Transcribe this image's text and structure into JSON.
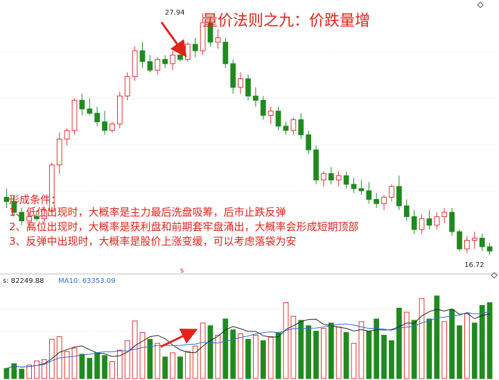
{
  "title": "量价法则之九：价跌量增",
  "conditions": {
    "heading": "形成条件：",
    "items": [
      "1、低位出现时，大概率是主力最后洗盘吸筹，后市止跌反弹",
      "2、高位出现时，大概率是获利盘和前期套牢盘涌出，大概率会形成短期顶部",
      "3、反弹中出现时，大概率是股价上涨变缓，可以考虑落袋为安"
    ]
  },
  "price_labels": {
    "high": "27.94",
    "low": "16.72"
  },
  "volume_header": {
    "vol_text": "s: 82249.88",
    "ma10_text": "MA10: 63353.09"
  },
  "marker_s": "s",
  "colors": {
    "up": "#e03030",
    "down": "#1f8a1f",
    "accent": "#e2231a",
    "ma_short": "#222222",
    "ma_long": "#2a6fd6"
  },
  "chart_data": {
    "type": "candlestick",
    "price_range": [
      16.0,
      28.3
    ],
    "price": [
      [
        19.4,
        19.8,
        18.9,
        19.2
      ],
      [
        19.2,
        19.5,
        18.5,
        18.7
      ],
      [
        18.7,
        18.9,
        18.1,
        18.3
      ],
      [
        18.3,
        18.7,
        17.9,
        18.5
      ],
      [
        18.5,
        18.8,
        18.3,
        18.4
      ],
      [
        18.4,
        19.0,
        18.2,
        18.8
      ],
      [
        18.8,
        21.0,
        18.7,
        20.9
      ],
      [
        20.9,
        22.4,
        20.5,
        22.1
      ],
      [
        22.1,
        22.6,
        21.8,
        22.5
      ],
      [
        22.5,
        24.0,
        22.3,
        23.9
      ],
      [
        23.9,
        24.2,
        23.2,
        23.5
      ],
      [
        23.5,
        24.0,
        23.2,
        23.3
      ],
      [
        23.3,
        23.6,
        22.7,
        22.9
      ],
      [
        22.9,
        23.4,
        22.3,
        22.5
      ],
      [
        22.5,
        22.9,
        22.4,
        22.8
      ],
      [
        22.8,
        24.3,
        22.6,
        24.1
      ],
      [
        24.1,
        25.2,
        23.9,
        25.0
      ],
      [
        25.0,
        26.4,
        24.8,
        26.2
      ],
      [
        26.2,
        26.6,
        25.4,
        25.7
      ],
      [
        25.7,
        26.0,
        25.2,
        25.3
      ],
      [
        25.3,
        25.9,
        25.1,
        25.8
      ],
      [
        25.8,
        26.0,
        25.4,
        25.6
      ],
      [
        25.6,
        26.2,
        25.3,
        26.0
      ],
      [
        26.0,
        26.3,
        25.7,
        25.8
      ],
      [
        25.8,
        26.6,
        25.7,
        26.5
      ],
      [
        26.5,
        26.8,
        25.9,
        26.2
      ],
      [
        26.2,
        27.94,
        26.0,
        27.5
      ],
      [
        27.5,
        27.8,
        26.4,
        26.6
      ],
      [
        26.6,
        27.2,
        26.3,
        26.8
      ],
      [
        26.6,
        26.8,
        25.4,
        25.6
      ],
      [
        25.6,
        25.8,
        24.2,
        24.5
      ],
      [
        24.5,
        25.2,
        24.2,
        24.9
      ],
      [
        24.9,
        25.1,
        23.9,
        24.1
      ],
      [
        24.1,
        24.5,
        23.6,
        23.9
      ],
      [
        23.9,
        24.1,
        23.0,
        23.2
      ],
      [
        23.2,
        23.6,
        22.8,
        23.4
      ],
      [
        23.4,
        23.6,
        22.5,
        22.7
      ],
      [
        22.7,
        22.9,
        22.3,
        22.5
      ],
      [
        22.5,
        23.1,
        22.3,
        23.0
      ],
      [
        23.0,
        23.3,
        22.1,
        22.3
      ],
      [
        22.3,
        22.5,
        21.4,
        21.6
      ],
      [
        21.6,
        21.8,
        20.0,
        20.2
      ],
      [
        20.2,
        20.6,
        19.9,
        20.5
      ],
      [
        20.5,
        20.8,
        20.0,
        20.2
      ],
      [
        20.2,
        20.6,
        19.9,
        20.4
      ],
      [
        20.4,
        20.6,
        19.8,
        20.0
      ],
      [
        20.0,
        20.3,
        19.6,
        19.8
      ],
      [
        19.8,
        20.2,
        19.5,
        19.7
      ],
      [
        19.7,
        20.1,
        19.1,
        19.3
      ],
      [
        19.3,
        19.6,
        18.9,
        19.1
      ],
      [
        19.1,
        19.5,
        18.8,
        19.4
      ],
      [
        19.4,
        20.0,
        19.2,
        19.9
      ],
      [
        19.9,
        20.4,
        18.8,
        19.0
      ],
      [
        19.0,
        19.3,
        18.3,
        18.5
      ],
      [
        18.5,
        18.8,
        17.7,
        17.9
      ],
      [
        17.9,
        18.6,
        17.7,
        18.4
      ],
      [
        18.4,
        18.8,
        17.9,
        18.1
      ],
      [
        18.1,
        18.7,
        17.9,
        18.5
      ],
      [
        18.5,
        18.9,
        18.2,
        18.7
      ],
      [
        18.7,
        18.9,
        17.6,
        17.8
      ],
      [
        17.8,
        17.9,
        16.9,
        17.0
      ],
      [
        17.0,
        17.6,
        16.8,
        17.4
      ],
      [
        17.4,
        17.8,
        17.0,
        17.5
      ],
      [
        17.5,
        17.7,
        16.9,
        17.1
      ],
      [
        17.1,
        17.3,
        16.72,
        16.9
      ]
    ],
    "volume_range": [
      0,
      135000
    ],
    "volume": [
      [
        15000,
        0
      ],
      [
        22000,
        0
      ],
      [
        14000,
        0
      ],
      [
        20000,
        1
      ],
      [
        26000,
        1
      ],
      [
        28000,
        1
      ],
      [
        58000,
        1
      ],
      [
        62000,
        1
      ],
      [
        40000,
        1
      ],
      [
        45000,
        1
      ],
      [
        36000,
        0
      ],
      [
        30000,
        0
      ],
      [
        38000,
        0
      ],
      [
        34000,
        0
      ],
      [
        25000,
        1
      ],
      [
        42000,
        1
      ],
      [
        56000,
        1
      ],
      [
        85000,
        1
      ],
      [
        68000,
        1
      ],
      [
        58000,
        0
      ],
      [
        52000,
        1
      ],
      [
        32000,
        0
      ],
      [
        38000,
        1
      ],
      [
        32000,
        0
      ],
      [
        40000,
        1
      ],
      [
        48000,
        1
      ],
      [
        82000,
        1
      ],
      [
        78000,
        0
      ],
      [
        64000,
        1
      ],
      [
        88000,
        0
      ],
      [
        72000,
        0
      ],
      [
        66000,
        1
      ],
      [
        58000,
        0
      ],
      [
        64000,
        1
      ],
      [
        56000,
        0
      ],
      [
        62000,
        1
      ],
      [
        68000,
        0
      ],
      [
        112000,
        1
      ],
      [
        92000,
        1
      ],
      [
        86000,
        0
      ],
      [
        78000,
        0
      ],
      [
        70000,
        0
      ],
      [
        74000,
        1
      ],
      [
        82000,
        0
      ],
      [
        76000,
        1
      ],
      [
        68000,
        0
      ],
      [
        52000,
        1
      ],
      [
        84000,
        1
      ],
      [
        70000,
        0
      ],
      [
        88000,
        0
      ],
      [
        64000,
        0
      ],
      [
        56000,
        0
      ],
      [
        104000,
        0
      ],
      [
        98000,
        1
      ],
      [
        86000,
        0
      ],
      [
        118000,
        1
      ],
      [
        88000,
        0
      ],
      [
        122000,
        0
      ],
      [
        84000,
        1
      ],
      [
        102000,
        0
      ],
      [
        78000,
        0
      ],
      [
        96000,
        1
      ],
      [
        82000,
        0
      ],
      [
        108000,
        0
      ],
      [
        112000,
        0
      ]
    ]
  }
}
